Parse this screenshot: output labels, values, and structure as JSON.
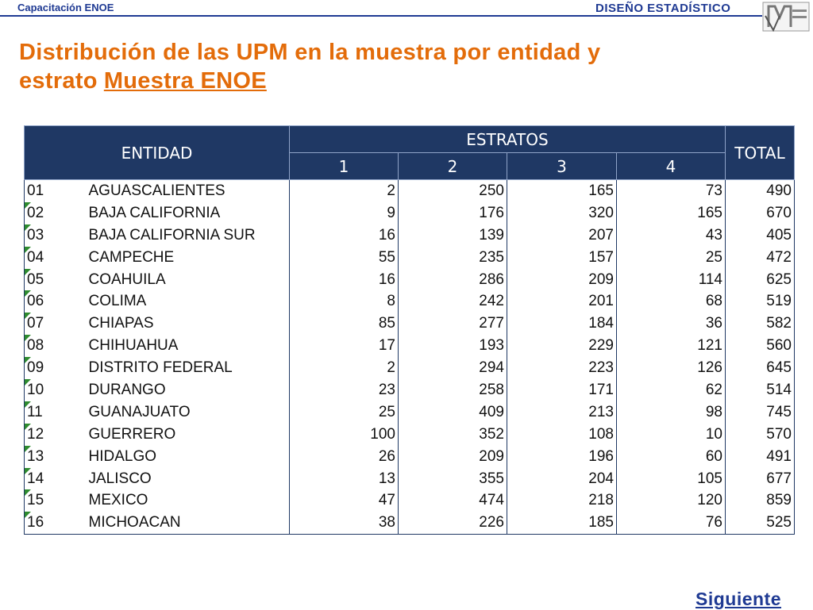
{
  "header": {
    "left": "Capacitación ENOE",
    "right": "DISEÑO ESTADÍSTICO"
  },
  "title": {
    "text": "Distribución de las UPM en la muestra por entidad y estrato",
    "link": "Muestra ENOE"
  },
  "table": {
    "headers": {
      "entidad": "ENTIDAD",
      "estratos": "ESTRATOS",
      "total": "TOTAL",
      "strata": [
        "1",
        "2",
        "3",
        "4"
      ]
    },
    "rows": [
      [
        "01",
        "AGUASCALIENTES",
        2,
        250,
        165,
        73,
        490
      ],
      [
        "02",
        "BAJA CALIFORNIA",
        9,
        176,
        320,
        165,
        670
      ],
      [
        "03",
        "BAJA CALIFORNIA SUR",
        16,
        139,
        207,
        43,
        405
      ],
      [
        "04",
        "CAMPECHE",
        55,
        235,
        157,
        25,
        472
      ],
      [
        "05",
        "COAHUILA",
        16,
        286,
        209,
        114,
        625
      ],
      [
        "06",
        "COLIMA",
        8,
        242,
        201,
        68,
        519
      ],
      [
        "07",
        "CHIAPAS",
        85,
        277,
        184,
        36,
        582
      ],
      [
        "08",
        "CHIHUAHUA",
        17,
        193,
        229,
        121,
        560
      ],
      [
        "09",
        "DISTRITO FEDERAL",
        2,
        294,
        223,
        126,
        645
      ],
      [
        "10",
        "DURANGO",
        23,
        258,
        171,
        62,
        514
      ],
      [
        "11",
        "GUANAJUATO",
        25,
        409,
        213,
        98,
        745
      ],
      [
        "12",
        "GUERRERO",
        100,
        352,
        108,
        10,
        570
      ],
      [
        "13",
        "HIDALGO",
        26,
        209,
        196,
        60,
        491
      ],
      [
        "14",
        "JALISCO",
        13,
        355,
        204,
        105,
        677
      ],
      [
        "15",
        "MEXICO",
        47,
        474,
        218,
        120,
        859
      ],
      [
        "16",
        "MICHOACAN",
        38,
        226,
        185,
        76,
        525
      ]
    ]
  },
  "footer": {
    "next": "Siguiente"
  }
}
